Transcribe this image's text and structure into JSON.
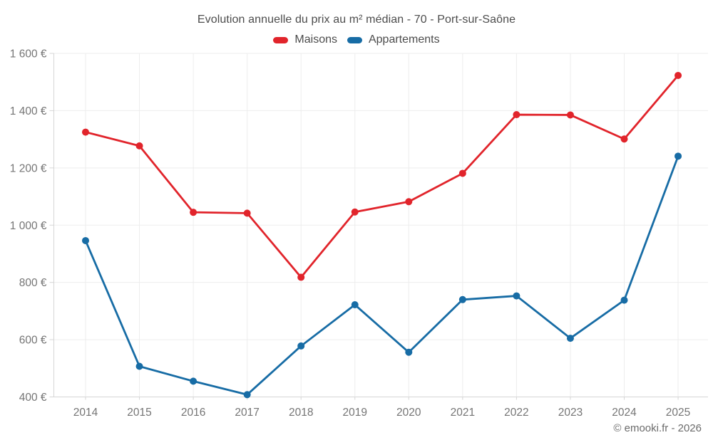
{
  "footer": "© emooki.fr - 2026",
  "colors": {
    "maisons": "#e1242b",
    "appartements": "#176ca5",
    "grid": "#ededed",
    "axis": "#d6d6d6",
    "tick_text": "#757575",
    "title_text": "#4c4c4c"
  },
  "chart_data": {
    "type": "line",
    "title": "Evolution annuelle du prix au m² médian - 70 - Port-sur-Saône",
    "categories": [
      "2014",
      "2015",
      "2016",
      "2017",
      "2018",
      "2019",
      "2020",
      "2021",
      "2022",
      "2023",
      "2024",
      "2025"
    ],
    "series": [
      {
        "name": "Maisons",
        "color": "#e1242b",
        "values": [
          1325,
          1277,
          1045,
          1042,
          818,
          1046,
          1082,
          1181,
          1386,
          1385,
          1301,
          1523
        ]
      },
      {
        "name": "Appartements",
        "color": "#176ca5",
        "values": [
          946,
          507,
          455,
          408,
          578,
          722,
          556,
          740,
          753,
          605,
          738,
          1241
        ]
      }
    ],
    "xlabel": "",
    "ylabel": "",
    "ylim": [
      400,
      1600
    ],
    "ytick_step": 200,
    "ytick_labels": [
      "400 €",
      "600 €",
      "800 €",
      "1 000 €",
      "1 200 €",
      "1 400 €",
      "1 600 €"
    ],
    "grid": true,
    "legend_position": "top"
  }
}
